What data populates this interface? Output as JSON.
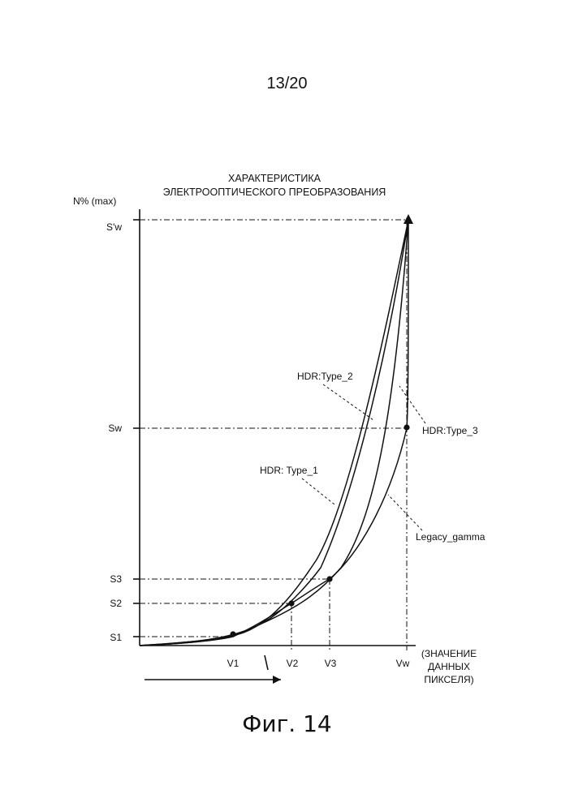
{
  "page_number": "13/20",
  "caption": "Фиг. 14",
  "chart_data": {
    "type": "line",
    "title_lines": [
      "ХАРАКТЕРИСТИКА",
      "ЭЛЕКТРООПТИЧЕСКОГО ПРЕОБРАЗОВАНИЯ"
    ],
    "ylabel": "N% (max)",
    "xlabel_lines": [
      "(ЗНАЧЕНИЕ",
      "ДАННЫХ",
      "ПИКСЕЛЯ)"
    ],
    "y_ticks": [
      "S'w",
      "Sw",
      "S3",
      "S2",
      "S1"
    ],
    "x_ticks": [
      "V1",
      "V2",
      "V3",
      "Vw"
    ],
    "series": [
      {
        "name": "HDR: Type_1"
      },
      {
        "name": "HDR:Type_2"
      },
      {
        "name": "HDR:Type_3"
      },
      {
        "name": "Legacy_gamma"
      }
    ]
  }
}
